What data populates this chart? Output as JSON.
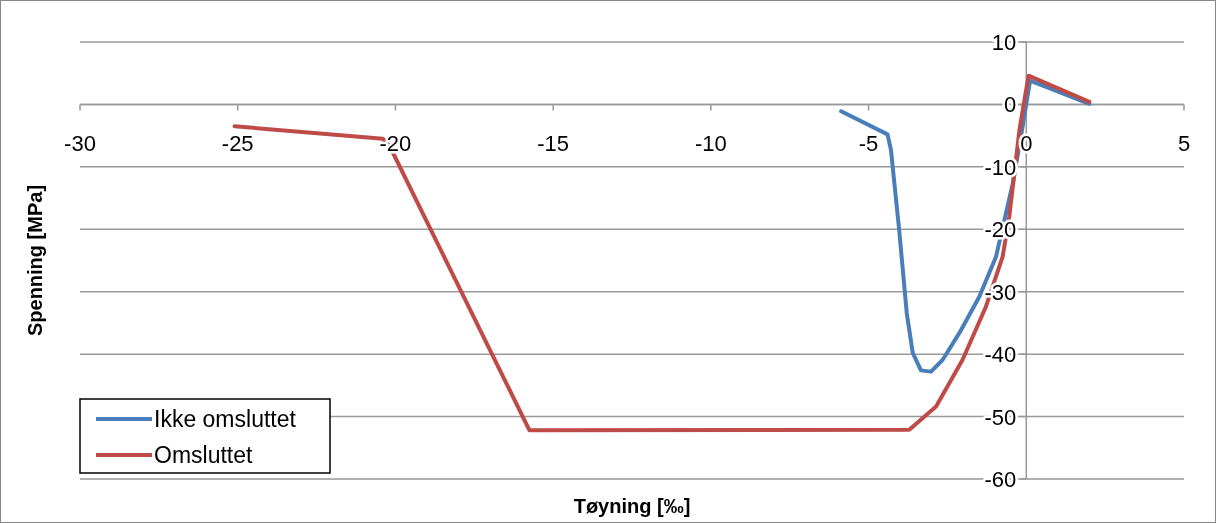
{
  "chart_data": {
    "type": "line",
    "xlabel": "Tøyning [‰]",
    "ylabel": "Spenning [MPa]",
    "xlim": [
      -30,
      5
    ],
    "xticks": [
      -30,
      -25,
      -20,
      -15,
      -10,
      -5,
      0,
      5
    ],
    "ylim": [
      -60,
      10
    ],
    "yticks": [
      -60,
      -50,
      -40,
      -30,
      -20,
      -10,
      0,
      10
    ],
    "grid": "y",
    "legend": "bottom left",
    "marker": "none",
    "line_style": "solid",
    "series": [
      {
        "name": "Ikke omsluttet",
        "color": "#4a7ebb",
        "x": [
          -5.87,
          -4.4,
          -4.29,
          -4.03,
          -3.79,
          -3.6,
          -3.34,
          -3.02,
          -2.65,
          -2.12,
          -1.49,
          -0.96,
          -0.43,
          -0.17,
          0.12,
          2.0
        ],
        "values": [
          -1.1,
          -4.8,
          -7.3,
          -20.1,
          -33.4,
          -39.8,
          -42.6,
          -42.8,
          -40.9,
          -36.6,
          -30.8,
          -24.4,
          -12.7,
          -5.2,
          3.8,
          0.1
        ]
      },
      {
        "name": "Omsluttet",
        "color": "#be4b48",
        "x": [
          -25.1,
          -20.4,
          -20.2,
          -15.75,
          -3.71,
          -2.86,
          -2.02,
          -1.28,
          -0.75,
          -0.54,
          -0.22,
          0.07,
          2.0
        ],
        "values": [
          -3.5,
          -5.5,
          -6.5,
          -52.2,
          -52.1,
          -48.4,
          -40.9,
          -32.4,
          -24.4,
          -18,
          -4.2,
          4.6,
          0.4
        ]
      }
    ]
  }
}
